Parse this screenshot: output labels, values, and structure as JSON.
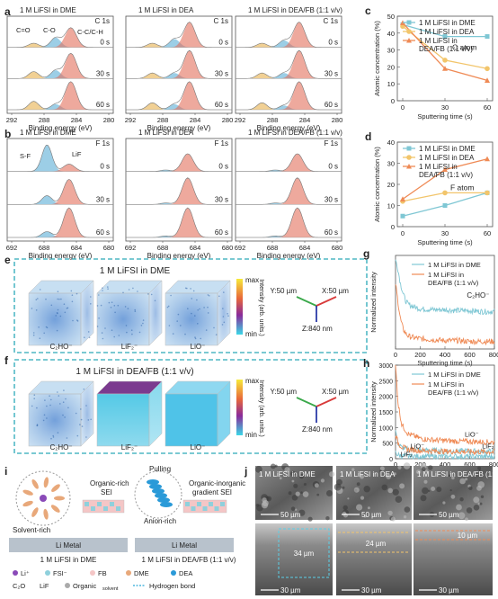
{
  "panels": {
    "a": {
      "letter": "a",
      "element": "C 1s",
      "titles": [
        "1 M LiFSI in DME",
        "1 M LiFSI in DEA",
        "1 M LiFSI in DEA/FB (1:1 v/v)"
      ],
      "times": [
        "0 s",
        "30 s",
        "60 s"
      ],
      "peak_labels": [
        "C=O",
        "C-O",
        "C-C/C-H"
      ],
      "xlabel": "Binding energy (eV)",
      "xticks": [
        "292",
        "288",
        "284",
        "280"
      ]
    },
    "b": {
      "letter": "b",
      "element": "F 1s",
      "titles": [
        "1 M LiFSI in DME",
        "1 M LiFSI in DEA",
        "1 M LiFSI in DEA/FB (1:1 v/v)"
      ],
      "times": [
        "0 s",
        "30 s",
        "60 s"
      ],
      "peak_labels": [
        "S-F",
        "LiF"
      ],
      "xlabel": "Binding energy (eV)",
      "xticks": [
        "692",
        "688",
        "684",
        "680"
      ]
    },
    "c": {
      "letter": "c",
      "annotation": "C atom",
      "xlabel": "Sputtering time (s)",
      "ylabel": "Atomic concentration (%)",
      "yticks": [
        "0",
        "10",
        "20",
        "30",
        "40",
        "50"
      ],
      "xticks": [
        "0",
        "30",
        "60"
      ],
      "legend": [
        "1 M LiFSI in DME",
        "1 M LiFSI in DEA",
        "1 M LiFSI in DEA/FB (1:1 v/v)"
      ]
    },
    "d": {
      "letter": "d",
      "annotation": "F atom",
      "xlabel": "Sputtering time (s)",
      "ylabel": "Atomic concentration (%)",
      "yticks": [
        "0",
        "10",
        "20",
        "30",
        "40"
      ],
      "xticks": [
        "0",
        "30",
        "60"
      ],
      "legend": [
        "1 M LiFSI in DME",
        "1 M LiFSI in DEA",
        "1 M LiFSI in DEA/FB (1:1 v/v)"
      ]
    },
    "e": {
      "letter": "e",
      "title": "1 M LiFSI in DME",
      "labels": [
        "C₂HO⁻",
        "LiF₂⁻",
        "LiO⁻"
      ],
      "cbar_max": "max",
      "cbar_min": "min",
      "cbar_label": "Intensity (arb. units.)",
      "axes": [
        "Y:50 µm",
        "X:50 µm",
        "Z:840 nm"
      ]
    },
    "f": {
      "letter": "f",
      "title": "1 M LiFSI in DEA/FB (1:1 v/v)",
      "labels": [
        "C₂HO⁻",
        "LiF₂⁻",
        "LiO⁻"
      ],
      "cbar_max": "max",
      "cbar_min": "min",
      "cbar_label": "Intensity (arb. units.)",
      "axes": [
        "Y:50 µm",
        "X:50 µm",
        "Z:840 nm"
      ]
    },
    "g": {
      "letter": "g",
      "xlabel": "Sputtering time (s)",
      "ylabel": "Normalized intensity",
      "annotation": "C₂HO⁻",
      "xticks": [
        "0",
        "200",
        "400",
        "600",
        "800"
      ],
      "legend": [
        "1 M LiFSI in DME",
        "1 M LiFSI in DEA/FB (1:1 v/v)"
      ]
    },
    "h": {
      "letter": "h",
      "xlabel": "Sputtering time (s)",
      "ylabel": "Normalized intensity",
      "yticks": [
        "0",
        "500",
        "1000",
        "1500",
        "2000",
        "2500",
        "3000"
      ],
      "xticks": [
        "0",
        "200",
        "400",
        "600",
        "800"
      ],
      "legend": [
        "1 M LiFSI in DME",
        "1 M LiFSI in DEA/FB (1:1 v/v)"
      ],
      "curve_labels": [
        "LiO⁻",
        "LiF₂",
        "LiO⁻",
        "LiF₂"
      ]
    },
    "i": {
      "letter": "i",
      "left_title": "1 M LiFSI in DME",
      "right_title": "1 M LiFSI in DEA/FB (1:1 v/v)",
      "left_labels": [
        "Organic-rich",
        "SEI",
        "Solvent-rich",
        "Li Metal"
      ],
      "right_labels": [
        "Pulling",
        "Organic-inorganic",
        "gradient SEI",
        "Anion-rich",
        "Li Metal"
      ],
      "legend": [
        "Li⁺",
        "FSI⁻",
        "FB",
        "DME",
        "DEA",
        "C₂O",
        "LiF",
        "Organic",
        "solvent",
        "Hydrogen bond"
      ]
    },
    "j": {
      "letter": "j",
      "top_labels": [
        "1 M LiFSI in DME",
        "1 M LiFSI in DEA",
        "1 M LiFSI in DEA/FB (1:1 v/v)"
      ],
      "scale_top": "50 µm",
      "scale_bottom": "30 µm",
      "thickness": [
        "34 µm",
        "24 µm",
        "10 µm"
      ]
    }
  },
  "chart_data": [
    {
      "type": "area",
      "panel": "a",
      "title": "C 1s",
      "xlabel": "Binding energy (eV)",
      "xlim": [
        292,
        280
      ],
      "series": [
        {
          "name": "C=O",
          "center": 289,
          "color": "#e8b04c"
        },
        {
          "name": "C-O",
          "center": 286.5,
          "color": "#5aaed6"
        },
        {
          "name": "C-C/C-H",
          "center": 284.8,
          "color": "#e26f5c"
        }
      ],
      "intensity": {
        "1 M LiFSI in DME": {
          "0 s": [
            0.15,
            0.35,
            0.7
          ],
          "30 s": [
            0.25,
            0.3,
            0.9
          ],
          "60 s": [
            0.3,
            0.2,
            1.0
          ]
        },
        "1 M LiFSI in DEA": {
          "0 s": [
            0.15,
            0.3,
            0.9
          ],
          "30 s": [
            0.2,
            0.2,
            1.0
          ],
          "60 s": [
            0.25,
            0.2,
            1.0
          ]
        },
        "1 M LiFSI in DEA/FB (1:1 v/v)": {
          "0 s": [
            0.15,
            0.25,
            0.9
          ],
          "30 s": [
            0.2,
            0.2,
            1.0
          ],
          "60 s": [
            0.25,
            0.15,
            1.0
          ]
        }
      }
    },
    {
      "type": "area",
      "panel": "b",
      "title": "F 1s",
      "xlabel": "Binding energy (eV)",
      "xlim": [
        692,
        680
      ],
      "series": [
        {
          "name": "S-F",
          "center": 687.5,
          "color": "#5aaed6"
        },
        {
          "name": "LiF",
          "center": 685,
          "color": "#e26f5c"
        }
      ],
      "intensity": {
        "1 M LiFSI in DME": {
          "0 s": [
            0.9,
            0.25
          ],
          "30 s": [
            0.3,
            0.85
          ],
          "60 s": [
            0.2,
            1.0
          ]
        },
        "1 M LiFSI in DEA": {
          "0 s": [
            0.05,
            0.6
          ],
          "30 s": [
            0.05,
            0.9
          ],
          "60 s": [
            0.05,
            1.0
          ]
        },
        "1 M LiFSI in DEA/FB (1:1 v/v)": {
          "0 s": [
            0.05,
            0.6
          ],
          "30 s": [
            0.05,
            0.9
          ],
          "60 s": [
            0.05,
            1.0
          ]
        }
      }
    },
    {
      "type": "line",
      "panel": "c",
      "xlabel": "Sputtering time (s)",
      "ylabel": "Atomic concentration (%)",
      "ylim": [
        0,
        50
      ],
      "x": [
        0,
        30,
        60
      ],
      "series": [
        {
          "name": "1 M LiFSI in DME",
          "values": [
            45,
            38,
            38
          ],
          "color": "#7fc7d4"
        },
        {
          "name": "1 M LiFSI in DEA",
          "values": [
            44,
            24,
            19
          ],
          "color": "#f2c56b"
        },
        {
          "name": "1 M LiFSI in DEA/FB (1:1 v/v)",
          "values": [
            46,
            19,
            12
          ],
          "color": "#ef8a55"
        }
      ]
    },
    {
      "type": "line",
      "panel": "d",
      "xlabel": "Sputtering time (s)",
      "ylabel": "Atomic concentration (%)",
      "ylim": [
        0,
        40
      ],
      "x": [
        0,
        30,
        60
      ],
      "series": [
        {
          "name": "1 M LiFSI in DME",
          "values": [
            5,
            10,
            16
          ],
          "color": "#7fc7d4"
        },
        {
          "name": "1 M LiFSI in DEA",
          "values": [
            12,
            16,
            16
          ],
          "color": "#f2c56b"
        },
        {
          "name": "1 M LiFSI in DEA/FB (1:1 v/v)",
          "values": [
            13,
            27,
            32
          ],
          "color": "#ef8a55"
        }
      ]
    },
    {
      "type": "line",
      "panel": "g",
      "xlabel": "Sputtering time (s)",
      "ylabel": "Normalized intensity",
      "xlim": [
        0,
        800
      ],
      "series": [
        {
          "name": "1 M LiFSI in DME",
          "color": "#7fc7d4",
          "x": [
            0,
            20,
            40,
            60,
            80,
            100,
            150,
            200,
            300,
            400,
            500,
            600,
            700,
            800
          ],
          "values": [
            0.95,
            0.85,
            0.7,
            0.6,
            0.52,
            0.48,
            0.45,
            0.43,
            0.42,
            0.42,
            0.41,
            0.41,
            0.4,
            0.4
          ]
        },
        {
          "name": "1 M LiFSI in DEA/FB (1:1 v/v)",
          "color": "#ef8a55",
          "x": [
            0,
            20,
            40,
            60,
            80,
            100,
            150,
            200,
            300,
            400,
            500,
            600,
            700,
            800
          ],
          "values": [
            0.7,
            0.5,
            0.32,
            0.22,
            0.17,
            0.14,
            0.12,
            0.11,
            0.1,
            0.09,
            0.09,
            0.08,
            0.08,
            0.08
          ]
        }
      ]
    },
    {
      "type": "line",
      "panel": "h",
      "xlabel": "Sputtering time (s)",
      "ylabel": "Normalized intensity",
      "ylim": [
        0,
        3000
      ],
      "xlim": [
        0,
        800
      ],
      "series": [
        {
          "name": "1 M LiFSI in DME LiO⁻",
          "color": "#7fc7d4",
          "x": [
            0,
            20,
            50,
            100,
            200,
            300,
            400,
            500,
            600,
            700,
            800
          ],
          "values": [
            900,
            500,
            350,
            300,
            270,
            260,
            250,
            245,
            240,
            240,
            235
          ]
        },
        {
          "name": "1 M LiFSI in DME LiF₂⁻",
          "color": "#7fc7d4",
          "x": [
            0,
            20,
            50,
            100,
            200,
            300,
            400,
            500,
            600,
            700,
            800
          ],
          "values": [
            200,
            120,
            90,
            80,
            75,
            72,
            70,
            70,
            68,
            68,
            67
          ]
        },
        {
          "name": "1 M LiFSI in DEA/FB (1:1 v/v) LiO⁻",
          "color": "#ef8a55",
          "x": [
            0,
            20,
            50,
            100,
            200,
            300,
            400,
            500,
            600,
            700,
            800
          ],
          "values": [
            3000,
            1800,
            1100,
            800,
            650,
            600,
            580,
            560,
            550,
            540,
            530
          ]
        },
        {
          "name": "1 M LiFSI in DEA/FB (1:1 v/v) LiF₂⁻",
          "color": "#ef8a55",
          "x": [
            0,
            20,
            50,
            100,
            200,
            300,
            400,
            500,
            600,
            700,
            800
          ],
          "values": [
            800,
            500,
            380,
            300,
            260,
            245,
            235,
            228,
            222,
            220,
            218
          ]
        }
      ]
    }
  ]
}
